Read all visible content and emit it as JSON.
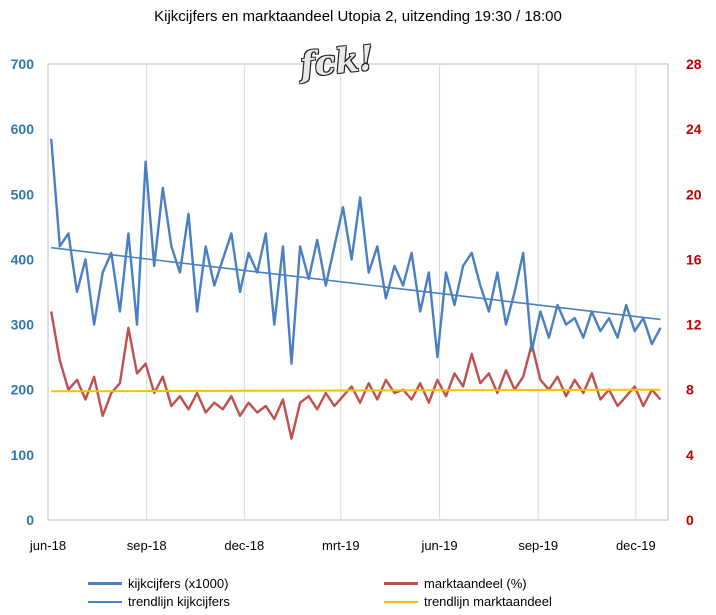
{
  "title": "Kijkcijfers en marktaandeel Utopia 2,  uitzending 19:30 / 18:00",
  "logo_text": "fck!",
  "chart_data": {
    "type": "line",
    "title": "Kijkcijfers en marktaandeel Utopia 2,  uitzending 19:30 / 18:00",
    "x_tick_labels": [
      "jun-18",
      "sep-18",
      "dec-18",
      "mrt-19",
      "jun-19",
      "sep-19",
      "dec-19"
    ],
    "x_range": [
      "2018-06-01",
      "2019-12-31"
    ],
    "left_axis": {
      "ticks": [
        "0",
        "100",
        "200",
        "300",
        "400",
        "500",
        "600",
        "700"
      ],
      "ylim": [
        0,
        700
      ],
      "color": "#2e75b6"
    },
    "right_axis": {
      "ticks": [
        "0",
        "4",
        "8",
        "12",
        "16",
        "20",
        "24",
        "28"
      ],
      "ylim": [
        0,
        28
      ],
      "color": "#c00000"
    },
    "grid": "vertical",
    "legend_position": "bottom",
    "series": [
      {
        "name": "kijkcijfers (x1000)",
        "axis": "left",
        "color": "#4a7fc1",
        "points": [
          [
            "2018-06-04",
            585
          ],
          [
            "2018-06-12",
            420
          ],
          [
            "2018-06-20",
            440
          ],
          [
            "2018-06-28",
            350
          ],
          [
            "2018-07-06",
            400
          ],
          [
            "2018-07-14",
            300
          ],
          [
            "2018-07-22",
            380
          ],
          [
            "2018-07-30",
            410
          ],
          [
            "2018-08-07",
            320
          ],
          [
            "2018-08-15",
            440
          ],
          [
            "2018-08-23",
            300
          ],
          [
            "2018-08-31",
            550
          ],
          [
            "2018-09-08",
            390
          ],
          [
            "2018-09-16",
            510
          ],
          [
            "2018-09-24",
            420
          ],
          [
            "2018-10-02",
            380
          ],
          [
            "2018-10-10",
            470
          ],
          [
            "2018-10-18",
            320
          ],
          [
            "2018-10-26",
            420
          ],
          [
            "2018-11-03",
            360
          ],
          [
            "2018-11-11",
            400
          ],
          [
            "2018-11-19",
            440
          ],
          [
            "2018-11-27",
            350
          ],
          [
            "2018-12-05",
            410
          ],
          [
            "2018-12-13",
            380
          ],
          [
            "2018-12-21",
            440
          ],
          [
            "2018-12-29",
            300
          ],
          [
            "2019-01-06",
            420
          ],
          [
            "2019-01-14",
            240
          ],
          [
            "2019-01-22",
            420
          ],
          [
            "2019-01-30",
            370
          ],
          [
            "2019-02-07",
            430
          ],
          [
            "2019-02-15",
            360
          ],
          [
            "2019-02-23",
            420
          ],
          [
            "2019-03-03",
            480
          ],
          [
            "2019-03-11",
            400
          ],
          [
            "2019-03-19",
            495
          ],
          [
            "2019-03-27",
            380
          ],
          [
            "2019-04-04",
            420
          ],
          [
            "2019-04-12",
            340
          ],
          [
            "2019-04-20",
            390
          ],
          [
            "2019-04-28",
            360
          ],
          [
            "2019-05-06",
            410
          ],
          [
            "2019-05-14",
            320
          ],
          [
            "2019-05-22",
            380
          ],
          [
            "2019-05-30",
            250
          ],
          [
            "2019-06-07",
            380
          ],
          [
            "2019-06-15",
            330
          ],
          [
            "2019-06-23",
            390
          ],
          [
            "2019-07-01",
            410
          ],
          [
            "2019-07-09",
            360
          ],
          [
            "2019-07-17",
            320
          ],
          [
            "2019-07-25",
            380
          ],
          [
            "2019-08-02",
            300
          ],
          [
            "2019-08-10",
            350
          ],
          [
            "2019-08-18",
            410
          ],
          [
            "2019-08-26",
            260
          ],
          [
            "2019-09-03",
            320
          ],
          [
            "2019-09-11",
            280
          ],
          [
            "2019-09-19",
            330
          ],
          [
            "2019-09-27",
            300
          ],
          [
            "2019-10-05",
            310
          ],
          [
            "2019-10-13",
            280
          ],
          [
            "2019-10-21",
            320
          ],
          [
            "2019-10-29",
            290
          ],
          [
            "2019-11-06",
            310
          ],
          [
            "2019-11-14",
            280
          ],
          [
            "2019-11-22",
            330
          ],
          [
            "2019-11-30",
            290
          ],
          [
            "2019-12-08",
            310
          ],
          [
            "2019-12-16",
            270
          ],
          [
            "2019-12-24",
            295
          ]
        ]
      },
      {
        "name": "marktaandeel (%)",
        "axis": "right",
        "color": "#c0504d",
        "points": [
          [
            "2018-06-04",
            12.8
          ],
          [
            "2018-06-12",
            9.8
          ],
          [
            "2018-06-20",
            8.0
          ],
          [
            "2018-06-28",
            8.6
          ],
          [
            "2018-07-06",
            7.4
          ],
          [
            "2018-07-14",
            8.8
          ],
          [
            "2018-07-22",
            6.4
          ],
          [
            "2018-07-30",
            7.8
          ],
          [
            "2018-08-07",
            8.4
          ],
          [
            "2018-08-15",
            11.8
          ],
          [
            "2018-08-23",
            9.0
          ],
          [
            "2018-08-31",
            9.6
          ],
          [
            "2018-09-08",
            7.8
          ],
          [
            "2018-09-16",
            8.8
          ],
          [
            "2018-09-24",
            7.0
          ],
          [
            "2018-10-02",
            7.6
          ],
          [
            "2018-10-10",
            6.8
          ],
          [
            "2018-10-18",
            7.8
          ],
          [
            "2018-10-26",
            6.6
          ],
          [
            "2018-11-03",
            7.2
          ],
          [
            "2018-11-11",
            6.8
          ],
          [
            "2018-11-19",
            7.6
          ],
          [
            "2018-11-27",
            6.4
          ],
          [
            "2018-12-05",
            7.2
          ],
          [
            "2018-12-13",
            6.6
          ],
          [
            "2018-12-21",
            7.0
          ],
          [
            "2018-12-29",
            6.2
          ],
          [
            "2019-01-06",
            7.4
          ],
          [
            "2019-01-14",
            5.0
          ],
          [
            "2019-01-22",
            7.2
          ],
          [
            "2019-01-30",
            7.6
          ],
          [
            "2019-02-07",
            6.8
          ],
          [
            "2019-02-15",
            7.8
          ],
          [
            "2019-02-23",
            7.0
          ],
          [
            "2019-03-03",
            7.6
          ],
          [
            "2019-03-11",
            8.2
          ],
          [
            "2019-03-19",
            7.2
          ],
          [
            "2019-03-27",
            8.4
          ],
          [
            "2019-04-04",
            7.4
          ],
          [
            "2019-04-12",
            8.6
          ],
          [
            "2019-04-20",
            7.8
          ],
          [
            "2019-04-28",
            8.0
          ],
          [
            "2019-05-06",
            7.4
          ],
          [
            "2019-05-14",
            8.4
          ],
          [
            "2019-05-22",
            7.2
          ],
          [
            "2019-05-30",
            8.6
          ],
          [
            "2019-06-07",
            7.6
          ],
          [
            "2019-06-15",
            9.0
          ],
          [
            "2019-06-23",
            8.2
          ],
          [
            "2019-07-01",
            10.2
          ],
          [
            "2019-07-09",
            8.4
          ],
          [
            "2019-07-17",
            9.0
          ],
          [
            "2019-07-25",
            7.8
          ],
          [
            "2019-08-02",
            9.2
          ],
          [
            "2019-08-10",
            8.0
          ],
          [
            "2019-08-18",
            8.8
          ],
          [
            "2019-08-26",
            10.8
          ],
          [
            "2019-09-03",
            8.6
          ],
          [
            "2019-09-11",
            8.0
          ],
          [
            "2019-09-19",
            8.8
          ],
          [
            "2019-09-27",
            7.6
          ],
          [
            "2019-10-05",
            8.6
          ],
          [
            "2019-10-13",
            7.8
          ],
          [
            "2019-10-21",
            9.0
          ],
          [
            "2019-10-29",
            7.4
          ],
          [
            "2019-11-06",
            8.0
          ],
          [
            "2019-11-14",
            7.0
          ],
          [
            "2019-11-22",
            7.6
          ],
          [
            "2019-11-30",
            8.2
          ],
          [
            "2019-12-08",
            7.0
          ],
          [
            "2019-12-16",
            8.0
          ],
          [
            "2019-12-24",
            7.4
          ]
        ]
      },
      {
        "name": "trendlijn kijkcijfers",
        "axis": "left",
        "color": "#4a7fc1",
        "points": [
          [
            "2018-06-04",
            418
          ],
          [
            "2019-12-24",
            308
          ]
        ]
      },
      {
        "name": "trendlijn marktaandeel",
        "axis": "right",
        "color": "#ffc000",
        "points": [
          [
            "2018-06-04",
            7.9
          ],
          [
            "2019-12-24",
            8.0
          ]
        ]
      }
    ]
  },
  "legend": [
    {
      "label": "kijkcijfers (x1000)",
      "color": "#4a7fc1",
      "thick": true
    },
    {
      "label": "marktaandeel (%)",
      "color": "#c0504d",
      "thick": true
    },
    {
      "label": "trendlijn kijkcijfers",
      "color": "#4a7fc1",
      "thick": false
    },
    {
      "label": "trendlijn marktaandeel",
      "color": "#ffc000",
      "thick": false
    }
  ]
}
